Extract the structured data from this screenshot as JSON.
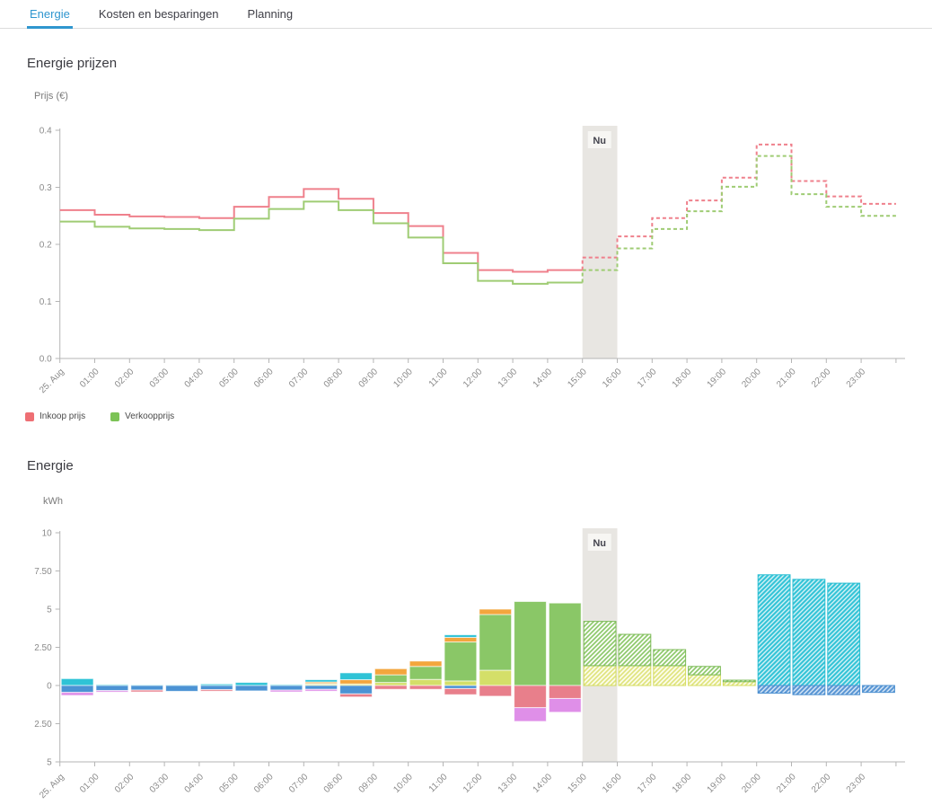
{
  "tabs": [
    {
      "label": "Energie",
      "active": true
    },
    {
      "label": "Kosten en besparingen",
      "active": false
    },
    {
      "label": "Planning",
      "active": false
    }
  ],
  "sections": {
    "prices": {
      "title": "Energie prijzen"
    },
    "energy": {
      "title": "Energie"
    }
  },
  "legend": [
    {
      "label": "Inkoop prijs",
      "color": "#ee6f74"
    },
    {
      "label": "Verkoopprijs",
      "color": "#7cc356"
    }
  ],
  "colors": {
    "accent_blue": "#2f96cf",
    "now_band": "#e8e6e2",
    "now_box": "#f7f6f3",
    "axis": "#b5b5b5",
    "tick_text": "#8a8a8a"
  },
  "chart_data": [
    {
      "type": "line",
      "subtype": "step",
      "title": "Energie prijzen",
      "ylabel": "Prijs (€)",
      "xlabel": "",
      "ylim": [
        0,
        0.4
      ],
      "yticks": [
        {
          "v": 0.0,
          "t": "0.0"
        },
        {
          "v": 0.1,
          "t": "0.1"
        },
        {
          "v": 0.2,
          "t": "0.2"
        },
        {
          "v": 0.3,
          "t": "0.3"
        },
        {
          "v": 0.4,
          "t": "0.4"
        }
      ],
      "categories": [
        "25. Aug",
        "01:00",
        "02:00",
        "03:00",
        "04:00",
        "05:00",
        "06:00",
        "07:00",
        "08:00",
        "09:00",
        "10:00",
        "11:00",
        "12:00",
        "13:00",
        "14:00",
        "15:00",
        "16:00",
        "17:00",
        "18:00",
        "19:00",
        "20:00",
        "21:00",
        "22:00",
        "23:00"
      ],
      "now_band": {
        "start_index": 15,
        "end_index": 16,
        "label": "Nu"
      },
      "forecast_from_index": 15,
      "series": [
        {
          "name": "Inkoop prijs",
          "color": "#ef808c",
          "values": [
            0.26,
            0.252,
            0.249,
            0.248,
            0.246,
            0.266,
            0.283,
            0.297,
            0.28,
            0.255,
            0.232,
            0.185,
            0.155,
            0.152,
            0.155,
            0.177,
            0.214,
            0.246,
            0.277,
            0.317,
            0.375,
            0.311,
            0.284,
            0.271
          ]
        },
        {
          "name": "Verkoopprijs",
          "color": "#9fcc74",
          "values": [
            0.24,
            0.231,
            0.228,
            0.227,
            0.225,
            0.245,
            0.262,
            0.275,
            0.26,
            0.237,
            0.212,
            0.167,
            0.136,
            0.131,
            0.133,
            0.155,
            0.193,
            0.227,
            0.258,
            0.301,
            0.355,
            0.288,
            0.266,
            0.25
          ]
        }
      ]
    },
    {
      "type": "bar",
      "subtype": "stacked",
      "title": "Energie",
      "ylabel": "kWh",
      "xlabel": "",
      "ylim": [
        -5,
        10
      ],
      "yticks": [
        {
          "v": 10,
          "t": "10"
        },
        {
          "v": 7.5,
          "t": "7.50"
        },
        {
          "v": 5,
          "t": "5"
        },
        {
          "v": 2.5,
          "t": "2.50"
        },
        {
          "v": 0,
          "t": "0"
        },
        {
          "v": -2.5,
          "t": "2.50"
        },
        {
          "v": -5,
          "t": "5"
        }
      ],
      "categories": [
        "25. Aug",
        "01:00",
        "02:00",
        "03:00",
        "04:00",
        "05:00",
        "06:00",
        "07:00",
        "08:00",
        "09:00",
        "10:00",
        "11:00",
        "12:00",
        "13:00",
        "14:00",
        "15:00",
        "16:00",
        "17:00",
        "18:00",
        "19:00",
        "20:00",
        "21:00",
        "22:00",
        "23:00"
      ],
      "now_band": {
        "start_index": 15,
        "end_index": 16,
        "label": "Nu"
      },
      "forecast_from_index": 15,
      "series": [
        {
          "id": "yellowgreen",
          "color": "#d4df69",
          "hatch": false,
          "border": "rgba(255,255,255,0.65)",
          "values": [
            0,
            0,
            0,
            0,
            0,
            0,
            0,
            0.08,
            0.1,
            0.2,
            0.4,
            0.3,
            1.0,
            0,
            0,
            0,
            0,
            0,
            0,
            0,
            0,
            0,
            0,
            0
          ]
        },
        {
          "id": "green",
          "color": "#8ac767",
          "hatch": false,
          "border": "rgba(255,255,255,0.65)",
          "values": [
            0,
            0,
            0,
            0,
            0,
            0,
            0,
            0.05,
            0,
            0.5,
            0.85,
            2.55,
            3.65,
            5.5,
            5.4,
            0,
            0,
            0,
            0,
            0,
            0,
            0,
            0,
            0
          ]
        },
        {
          "id": "orange",
          "color": "#f3a63d",
          "hatch": false,
          "border": "rgba(255,255,255,0.65)",
          "values": [
            0,
            0,
            0,
            0,
            0,
            0,
            0,
            0.1,
            0.28,
            0.4,
            0.35,
            0.3,
            0.35,
            0,
            0,
            0,
            0,
            0,
            0,
            0,
            0,
            0,
            0,
            0
          ]
        },
        {
          "id": "cyan",
          "color": "#2fc3d6",
          "hatch": false,
          "border": "rgba(255,255,255,0.65)",
          "values": [
            0.45,
            0.07,
            0.05,
            0.05,
            0.1,
            0.2,
            0.07,
            0.15,
            0.45,
            0,
            0,
            0.17,
            0,
            0,
            0,
            0,
            0,
            0,
            0,
            0,
            0,
            0,
            0,
            0
          ]
        },
        {
          "id": "fc_yellow",
          "color": "#dfe37b",
          "hatch": true,
          "border": "#d5dc60",
          "values": [
            0,
            0,
            0,
            0,
            0,
            0,
            0,
            0,
            0,
            0,
            0,
            0,
            0,
            0,
            0,
            1.3,
            1.3,
            1.3,
            0.7,
            0.25,
            0,
            0,
            0,
            0
          ]
        },
        {
          "id": "fc_green",
          "color": "#8ac767",
          "hatch": true,
          "border": "#7dbb58",
          "values": [
            0,
            0,
            0,
            0,
            0,
            0,
            0,
            0,
            0,
            0,
            0,
            0,
            0,
            0,
            0,
            2.9,
            2.05,
            1.05,
            0.55,
            0.1,
            0,
            0,
            0,
            0
          ]
        },
        {
          "id": "fc_cyan",
          "color": "#35c4d7",
          "hatch": true,
          "border": "#29bed2",
          "values": [
            0,
            0,
            0,
            0,
            0,
            0,
            0,
            0,
            0,
            0,
            0,
            0,
            0,
            0,
            0,
            0,
            0,
            0,
            0,
            0,
            7.25,
            6.95,
            6.7,
            0
          ]
        },
        {
          "id": "blue",
          "color": "#4b93d4",
          "hatch": false,
          "border": "rgba(255,255,255,0.65)",
          "values": [
            -0.45,
            -0.33,
            -0.3,
            -0.38,
            -0.27,
            -0.35,
            -0.3,
            -0.25,
            -0.55,
            0,
            0,
            -0.2,
            0,
            0,
            0,
            0,
            0,
            0,
            0,
            0,
            0,
            0,
            0,
            0
          ]
        },
        {
          "id": "red",
          "color": "#e87f8b",
          "hatch": false,
          "border": "rgba(255,255,255,0.65)",
          "values": [
            0,
            0,
            -0.12,
            0,
            -0.1,
            0,
            0,
            0,
            -0.2,
            -0.25,
            -0.25,
            -0.4,
            -0.7,
            -1.45,
            -0.85,
            0,
            0,
            0,
            0,
            0,
            0,
            0,
            0,
            0
          ]
        },
        {
          "id": "magenta",
          "color": "#df8fe8",
          "hatch": false,
          "border": "rgba(255,255,255,0.65)",
          "values": [
            -0.2,
            -0.1,
            0,
            0,
            0,
            0,
            -0.12,
            -0.12,
            0,
            0,
            0,
            0,
            0,
            -0.9,
            -0.9,
            0,
            0,
            0,
            0,
            0,
            0,
            0,
            0,
            0
          ]
        },
        {
          "id": "fc_blue",
          "color": "#5b97d4",
          "hatch": true,
          "border": "#4a8fd0",
          "values": [
            0,
            0,
            0,
            0,
            0,
            0,
            0,
            0,
            0,
            0,
            0,
            0,
            0,
            0,
            0,
            0,
            0,
            0,
            0,
            0,
            -0.5,
            -0.6,
            -0.6,
            -0.45
          ]
        }
      ]
    }
  ]
}
